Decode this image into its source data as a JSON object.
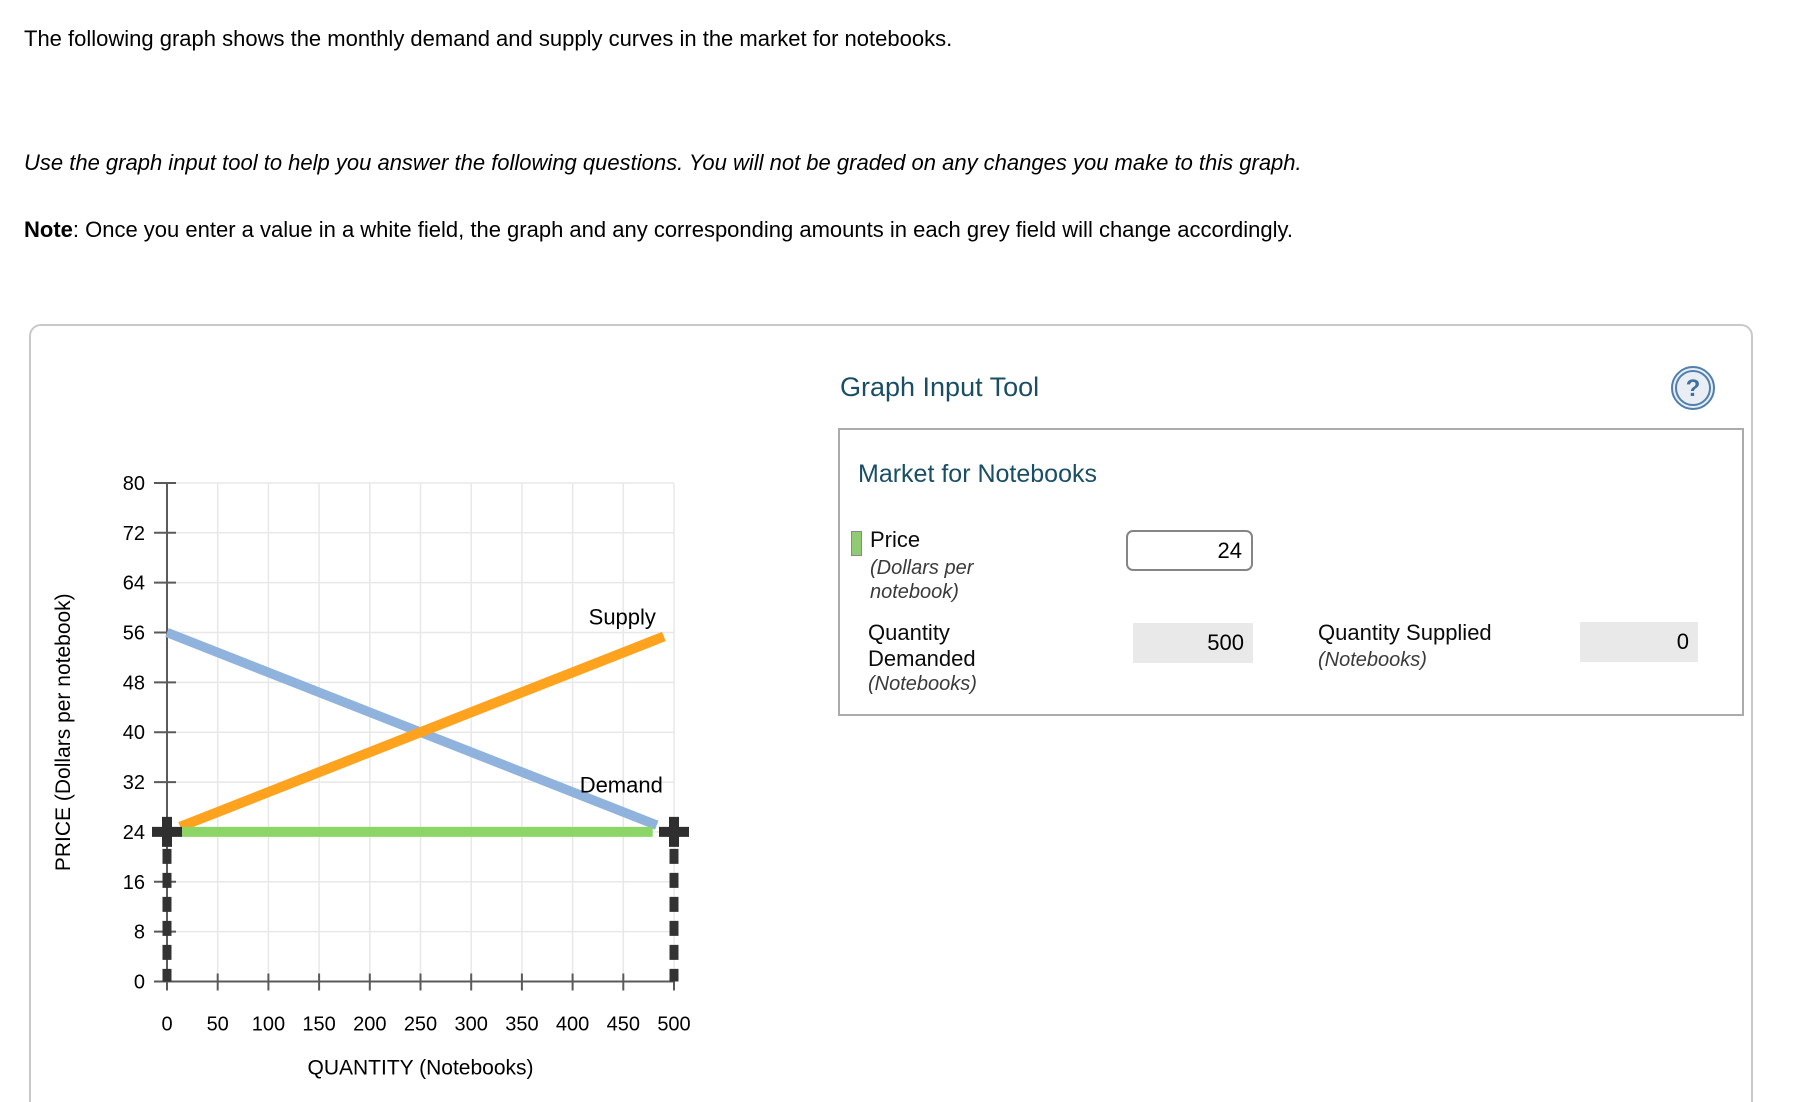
{
  "intro_text": "The following graph shows the monthly demand and supply curves in the market for notebooks.",
  "instruction_text": "Use the graph input tool to help you answer the following questions. You will not be graded on any changes you make to this graph.",
  "note": {
    "label": "Note",
    "text": ": Once you enter a value in a white field, the graph and any corresponding amounts in each grey field will change accordingly."
  },
  "graph_input_tool": {
    "title": "Graph Input Tool",
    "help_icon": "question-mark",
    "market_title": "Market for Notebooks",
    "price": {
      "label": "Price",
      "sublabel": "(Dollars per notebook)",
      "value": "24",
      "swatch_color": "#90cb74"
    },
    "quantity_demanded": {
      "label": "Quantity Demanded",
      "sublabel": "(Notebooks)",
      "value": "500"
    },
    "quantity_supplied": {
      "label": "Quantity Supplied",
      "sublabel": "(Notebooks)",
      "value": "0"
    }
  },
  "chart_data": {
    "type": "line",
    "title": "",
    "xlabel": "QUANTITY (Notebooks)",
    "ylabel": "PRICE (Dollars per notebook)",
    "xlim": [
      0,
      500
    ],
    "ylim": [
      0,
      80
    ],
    "xtick_step": 50,
    "ytick_step": 8,
    "grid": true,
    "series": [
      {
        "name": "Demand",
        "color": "#8fb3dc",
        "from": [
          0,
          56
        ],
        "to": [
          500,
          24
        ],
        "draw_range": [
          0,
          483
        ],
        "width": 9.5,
        "label": {
          "text": "Demand",
          "at": [
            448,
            31.6
          ]
        }
      },
      {
        "name": "Supply",
        "color": "#ffa21e",
        "from": [
          0,
          24
        ],
        "to": [
          500,
          56
        ],
        "draw_range": [
          13,
          490
        ],
        "width": 10,
        "label": {
          "text": "Supply",
          "at": [
            449,
            58.6
          ]
        }
      },
      {
        "name": "Price line",
        "color": "#8cd667",
        "from": [
          0,
          24
        ],
        "to": [
          500,
          24
        ],
        "draw_range": [
          14,
          479
        ],
        "width": 10,
        "label": null
      }
    ],
    "markers": {
      "shape": "plus",
      "color": "#2f2f2f",
      "points": [
        [
          0,
          24
        ],
        [
          500,
          24
        ]
      ]
    },
    "drop_lines": {
      "style": "dashed",
      "color": "#333333",
      "price": 24,
      "xs": [
        0,
        500
      ]
    },
    "colors": {
      "grid": "#e8e8e8",
      "axis": "#5a5a5a",
      "tick_label": "#000000"
    }
  }
}
